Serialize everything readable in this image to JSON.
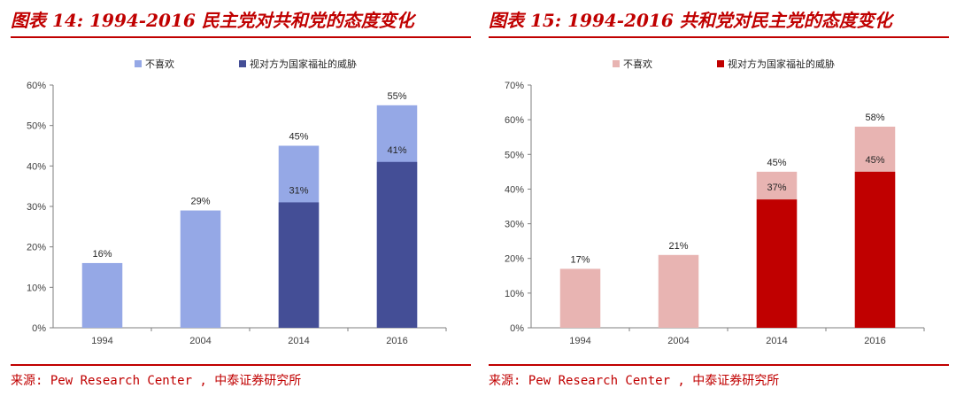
{
  "chart_data": [
    {
      "type": "bar",
      "title": "图表 14: 1994-2016 民主党对共和党的态度变化",
      "source": "来源: Pew Research Center , 中泰证券研究所",
      "categories": [
        "1994",
        "2004",
        "2014",
        "2016"
      ],
      "series": [
        {
          "name": "不喜欢",
          "values": [
            16,
            29,
            45,
            55
          ],
          "color": "#95a8e6"
        },
        {
          "name": "视对方为国家福祉的威胁",
          "values": [
            null,
            null,
            31,
            41
          ],
          "color": "#444e96"
        }
      ],
      "ylim": [
        0,
        60
      ],
      "yticks": [
        "0%",
        "10%",
        "20%",
        "30%",
        "40%",
        "50%",
        "60%"
      ],
      "legend_position": "top",
      "grid": false
    },
    {
      "type": "bar",
      "title": "图表 15: 1994-2016 共和党对民主党的态度变化",
      "source": "来源: Pew Research Center , 中泰证券研究所",
      "categories": [
        "1994",
        "2004",
        "2014",
        "2016"
      ],
      "series": [
        {
          "name": "不喜欢",
          "values": [
            17,
            21,
            45,
            58
          ],
          "color": "#e8b4b2"
        },
        {
          "name": "视对方为国家福祉的威胁",
          "values": [
            null,
            null,
            37,
            45
          ],
          "color": "#c00000"
        }
      ],
      "ylim": [
        0,
        70
      ],
      "yticks": [
        "0%",
        "10%",
        "20%",
        "30%",
        "40%",
        "50%",
        "60%",
        "70%"
      ],
      "legend_position": "top",
      "grid": false
    }
  ]
}
